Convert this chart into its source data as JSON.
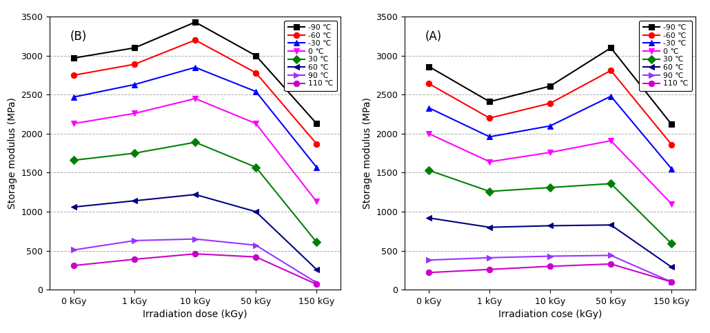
{
  "x_labels": [
    "0 kGy",
    "1 kGy",
    "10 kGy",
    "50 kGy",
    "150 kGy"
  ],
  "x_positions": [
    0,
    1,
    2,
    3,
    4
  ],
  "temperatures": [
    "-90 ℃",
    "-60 ℃",
    "-30 ℃",
    "0 ℃",
    "30 ℃",
    "60 ℃",
    "90 ℃",
    "110 ℃"
  ],
  "data_B": {
    "-90": [
      2970,
      3100,
      3430,
      3000,
      2130
    ],
    "-60": [
      2750,
      2890,
      3200,
      2780,
      1870
    ],
    "-30": [
      2470,
      2630,
      2850,
      2540,
      1570
    ],
    "0": [
      2130,
      2260,
      2450,
      2130,
      1130
    ],
    "30": [
      1660,
      1750,
      1890,
      1570,
      610
    ],
    "60": [
      1060,
      1140,
      1220,
      1000,
      260
    ],
    "90": [
      510,
      630,
      650,
      570,
      90
    ],
    "110": [
      310,
      390,
      460,
      420,
      70
    ]
  },
  "data_A": {
    "-90": [
      2860,
      2410,
      2610,
      3100,
      2120
    ],
    "-60": [
      2640,
      2200,
      2390,
      2810,
      1860
    ],
    "-30": [
      2330,
      1960,
      2100,
      2480,
      1550
    ],
    "0": [
      2000,
      1640,
      1760,
      1910,
      1100
    ],
    "30": [
      1530,
      1260,
      1310,
      1360,
      590
    ],
    "60": [
      920,
      800,
      820,
      830,
      290
    ],
    "90": [
      380,
      410,
      430,
      440,
      100
    ],
    "110": [
      220,
      260,
      300,
      330,
      100
    ]
  },
  "ylim": [
    0,
    3500
  ],
  "yticks": [
    0,
    500,
    1000,
    1500,
    2000,
    2500,
    3000,
    3500
  ],
  "ylabel": "Storage modulus (MPa)",
  "xlabel_B": "Irradiation dose (kGy)",
  "xlabel_A": "Irradiation cose (kGy)",
  "label_B": "(B)",
  "label_A": "(A)",
  "line_colors": {
    "-90": "#000000",
    "-60": "#ff0000",
    "-30": "#0000ff",
    "0": "#ff00ff",
    "30": "#008000",
    "60": "#000080",
    "90": "#9933ff",
    "110": "#cc00cc"
  },
  "marker_styles": {
    "-90": "s",
    "-60": "o",
    "-30": "^",
    "0": "v",
    "30": "D",
    "60": "<",
    "90": ">",
    "110": "o"
  }
}
